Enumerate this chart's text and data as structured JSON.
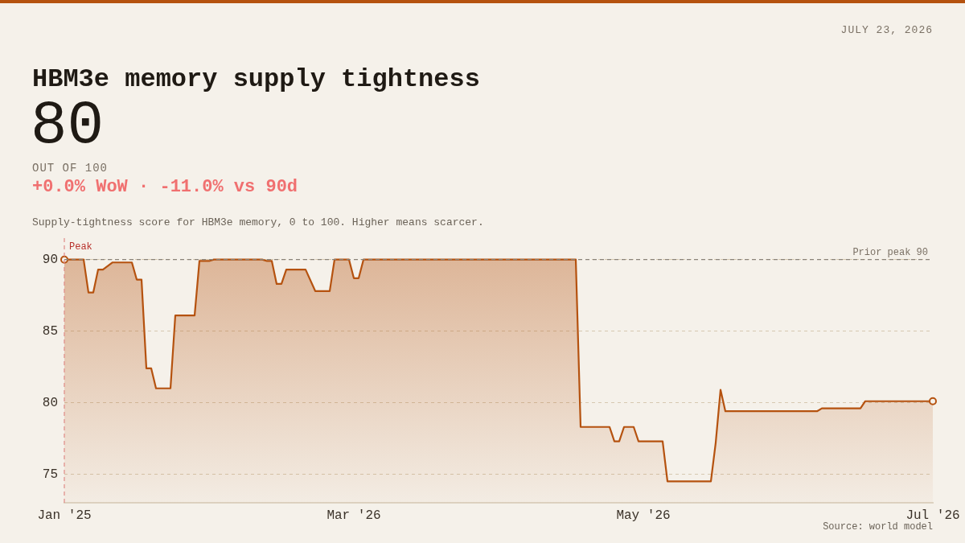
{
  "chart_data": {
    "type": "area",
    "title": "HBM3e memory supply tightness",
    "subtitle": "Supply-tightness score for HBM3e memory, 0 to 100. Higher means scarcer.",
    "annotations": [
      "JULY 23, 2026",
      "80",
      "OUT OF 100",
      "+0.0% WoW · -11.0% vs 90d",
      "Source: world model"
    ],
    "categories": [
      "Jan '25",
      null,
      null,
      null,
      null,
      null,
      null,
      null,
      null,
      null,
      null,
      null,
      null,
      null,
      null,
      null,
      null,
      null,
      null,
      null,
      null,
      null,
      null,
      null,
      null,
      null,
      null,
      null,
      null,
      null,
      null,
      null,
      null,
      null,
      null,
      null,
      null,
      null,
      null,
      null,
      null,
      null,
      null,
      null,
      null,
      null,
      null,
      null,
      null,
      null,
      null,
      null,
      null,
      null,
      null,
      null,
      null,
      null,
      null,
      null,
      "Mar '26",
      null,
      null,
      null,
      null,
      null,
      null,
      null,
      null,
      null,
      null,
      null,
      null,
      null,
      null,
      null,
      null,
      null,
      null,
      null,
      null,
      null,
      null,
      null,
      null,
      null,
      null,
      null,
      null,
      null,
      null,
      null,
      null,
      null,
      null,
      null,
      null,
      null,
      null,
      null,
      null,
      null,
      null,
      null,
      null,
      null,
      null,
      null,
      null,
      null,
      null,
      null,
      null,
      null,
      null,
      null,
      null,
      null,
      null,
      null,
      "May '26",
      null,
      null,
      null,
      null,
      null,
      null,
      null,
      null,
      null,
      null,
      null,
      null,
      null,
      null,
      null,
      null,
      null,
      null,
      null,
      null,
      null,
      null,
      null,
      null,
      null,
      null,
      null,
      null,
      null,
      null,
      null,
      null,
      null,
      null,
      null,
      null,
      null,
      null,
      null,
      null,
      null,
      null,
      null,
      null,
      null,
      null,
      null,
      null,
      null,
      null,
      null,
      null,
      null,
      null,
      null,
      null,
      null,
      null,
      null,
      "Jul '26"
    ],
    "series": [
      {
        "color": "#b5520f",
        "values": [
          90,
          null,
          null,
          null,
          90,
          87.7,
          87.7,
          89.3,
          89.3,
          null,
          89.8,
          null,
          null,
          null,
          89.8,
          88.6,
          88.6,
          82.4,
          82.4,
          81,
          null,
          null,
          81,
          86.1,
          null,
          null,
          null,
          86.1,
          89.9,
          null,
          89.9,
          90,
          null,
          null,
          null,
          null,
          null,
          null,
          null,
          null,
          null,
          90,
          89.9,
          89.9,
          88.3,
          88.3,
          89.3,
          null,
          null,
          null,
          89.3,
          null,
          87.8,
          null,
          null,
          87.8,
          90,
          null,
          null,
          90,
          88.7,
          88.7,
          90,
          null,
          null,
          null,
          null,
          null,
          null,
          null,
          null,
          null,
          null,
          null,
          null,
          null,
          null,
          null,
          null,
          null,
          null,
          null,
          null,
          null,
          null,
          null,
          null,
          null,
          null,
          null,
          null,
          null,
          null,
          null,
          null,
          null,
          null,
          null,
          null,
          null,
          null,
          null,
          null,
          null,
          null,
          null,
          90,
          78.3,
          null,
          null,
          null,
          null,
          null,
          78.3,
          77.3,
          77.3,
          78.3,
          null,
          78.3,
          77.3,
          null,
          null,
          null,
          null,
          77.3,
          74.5,
          null,
          null,
          null,
          null,
          null,
          null,
          null,
          null,
          74.5,
          77.2,
          80.9,
          79.4,
          null,
          null,
          null,
          null,
          null,
          null,
          null,
          null,
          null,
          null,
          null,
          null,
          null,
          null,
          null,
          null,
          null,
          null,
          79.4,
          79.6,
          null,
          null,
          null,
          null,
          null,
          null,
          null,
          79.6,
          80.1,
          null,
          null,
          null,
          null,
          null,
          null,
          null,
          null,
          null,
          null,
          null,
          null,
          null,
          80.1
        ]
      }
    ],
    "ylim": [
      73,
      91.5
    ],
    "yticks": [
      75,
      80,
      85,
      90
    ],
    "ref_lines": [
      {
        "axis": "y",
        "value": 90,
        "label": "Prior peak 90",
        "color": "#8a8378",
        "line_style": "dashed"
      },
      {
        "axis": "x",
        "value": "Jan '25",
        "label": "Peak",
        "color": "#e08a86",
        "line_style": "dashed"
      }
    ],
    "grid": "y",
    "legend": false,
    "line_style": "solid"
  }
}
